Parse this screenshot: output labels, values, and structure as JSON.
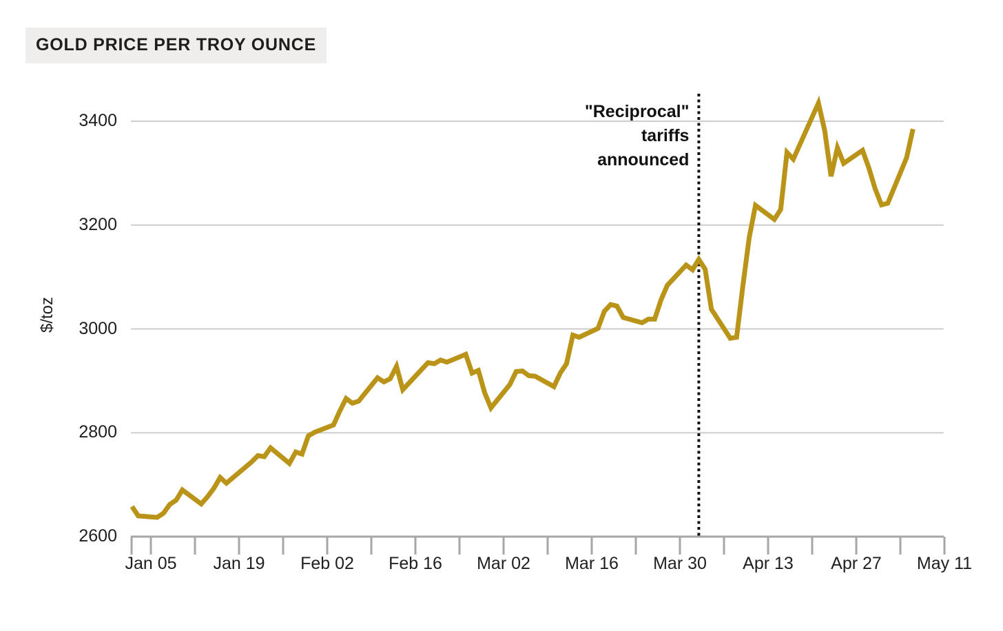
{
  "title": "GOLD PRICE PER TROY OUNCE",
  "colors": {
    "line": "#ba9418",
    "grid": "#cdcdcd",
    "axis": "#a6a6a6",
    "text": "#1f1f1f",
    "event_line": "#111111",
    "title_bg": "#efeeec"
  },
  "annotation": {
    "lines": [
      "\"Reciprocal\"",
      "tariffs",
      "announced"
    ],
    "date": "2025-04-02"
  },
  "chart_data": {
    "type": "line",
    "title": "GOLD PRICE PER TROY OUNCE",
    "ylabel": "$/toz",
    "xlabel": "",
    "ylim": [
      2600,
      3460
    ],
    "xlim": [
      "2025-01-02",
      "2025-05-11"
    ],
    "grid": "horizontal",
    "legend": "none",
    "y_ticks": [
      2600,
      2800,
      3000,
      3200,
      3400
    ],
    "y_gridlines": [
      2800,
      3000,
      3200,
      3400
    ],
    "x_ticks": [
      {
        "date": "2025-01-05",
        "label": "Jan 05"
      },
      {
        "date": "2025-01-12",
        "label": ""
      },
      {
        "date": "2025-01-19",
        "label": "Jan 19"
      },
      {
        "date": "2025-01-26",
        "label": ""
      },
      {
        "date": "2025-02-02",
        "label": "Feb 02"
      },
      {
        "date": "2025-02-09",
        "label": ""
      },
      {
        "date": "2025-02-16",
        "label": "Feb 16"
      },
      {
        "date": "2025-02-23",
        "label": ""
      },
      {
        "date": "2025-03-02",
        "label": "Mar 02"
      },
      {
        "date": "2025-03-09",
        "label": ""
      },
      {
        "date": "2025-03-16",
        "label": "Mar 16"
      },
      {
        "date": "2025-03-23",
        "label": ""
      },
      {
        "date": "2025-03-30",
        "label": "Mar 30"
      },
      {
        "date": "2025-04-06",
        "label": ""
      },
      {
        "date": "2025-04-13",
        "label": "Apr 13"
      },
      {
        "date": "2025-04-20",
        "label": ""
      },
      {
        "date": "2025-04-27",
        "label": "Apr 27"
      },
      {
        "date": "2025-05-04",
        "label": ""
      },
      {
        "date": "2025-05-11",
        "label": "May 11"
      }
    ],
    "annotation_vline": {
      "date": "2025-04-02",
      "label": "\"Reciprocal\" tariffs announced"
    },
    "series": [
      {
        "name": "Gold price ($/toz)",
        "points": [
          [
            "2025-01-02",
            2658
          ],
          [
            "2025-01-03",
            2640
          ],
          [
            "2025-01-06",
            2637
          ],
          [
            "2025-01-07",
            2645
          ],
          [
            "2025-01-08",
            2662
          ],
          [
            "2025-01-09",
            2670
          ],
          [
            "2025-01-10",
            2690
          ],
          [
            "2025-01-13",
            2663
          ],
          [
            "2025-01-14",
            2677
          ],
          [
            "2025-01-15",
            2693
          ],
          [
            "2025-01-16",
            2714
          ],
          [
            "2025-01-17",
            2703
          ],
          [
            "2025-01-21",
            2744
          ],
          [
            "2025-01-22",
            2756
          ],
          [
            "2025-01-23",
            2754
          ],
          [
            "2025-01-24",
            2771
          ],
          [
            "2025-01-27",
            2741
          ],
          [
            "2025-01-28",
            2763
          ],
          [
            "2025-01-29",
            2759
          ],
          [
            "2025-01-30",
            2794
          ],
          [
            "2025-01-31",
            2801
          ],
          [
            "2025-02-03",
            2815
          ],
          [
            "2025-02-04",
            2842
          ],
          [
            "2025-02-05",
            2866
          ],
          [
            "2025-02-06",
            2857
          ],
          [
            "2025-02-07",
            2861
          ],
          [
            "2025-02-10",
            2906
          ],
          [
            "2025-02-11",
            2898
          ],
          [
            "2025-02-12",
            2904
          ],
          [
            "2025-02-13",
            2928
          ],
          [
            "2025-02-14",
            2883
          ],
          [
            "2025-02-18",
            2935
          ],
          [
            "2025-02-19",
            2933
          ],
          [
            "2025-02-20",
            2940
          ],
          [
            "2025-02-21",
            2936
          ],
          [
            "2025-02-24",
            2951
          ],
          [
            "2025-02-25",
            2915
          ],
          [
            "2025-02-26",
            2920
          ],
          [
            "2025-02-27",
            2877
          ],
          [
            "2025-02-28",
            2848
          ],
          [
            "2025-03-03",
            2893
          ],
          [
            "2025-03-04",
            2918
          ],
          [
            "2025-03-05",
            2919
          ],
          [
            "2025-03-06",
            2910
          ],
          [
            "2025-03-07",
            2909
          ],
          [
            "2025-03-10",
            2889
          ],
          [
            "2025-03-11",
            2915
          ],
          [
            "2025-03-12",
            2933
          ],
          [
            "2025-03-13",
            2988
          ],
          [
            "2025-03-14",
            2984
          ],
          [
            "2025-03-17",
            3001
          ],
          [
            "2025-03-18",
            3034
          ],
          [
            "2025-03-19",
            3047
          ],
          [
            "2025-03-20",
            3044
          ],
          [
            "2025-03-21",
            3022
          ],
          [
            "2025-03-24",
            3012
          ],
          [
            "2025-03-25",
            3019
          ],
          [
            "2025-03-26",
            3019
          ],
          [
            "2025-03-27",
            3056
          ],
          [
            "2025-03-28",
            3084
          ],
          [
            "2025-03-31",
            3123
          ],
          [
            "2025-04-01",
            3114
          ],
          [
            "2025-04-02",
            3134
          ],
          [
            "2025-04-03",
            3115
          ],
          [
            "2025-04-04",
            3038
          ],
          [
            "2025-04-07",
            2982
          ],
          [
            "2025-04-08",
            2984
          ],
          [
            "2025-04-09",
            3083
          ],
          [
            "2025-04-10",
            3176
          ],
          [
            "2025-04-11",
            3238
          ],
          [
            "2025-04-14",
            3211
          ],
          [
            "2025-04-15",
            3230
          ],
          [
            "2025-04-16",
            3340
          ],
          [
            "2025-04-17",
            3327
          ],
          [
            "2025-04-21",
            3435
          ],
          [
            "2025-04-22",
            3381
          ],
          [
            "2025-04-23",
            3294
          ],
          [
            "2025-04-24",
            3349
          ],
          [
            "2025-04-25",
            3319
          ],
          [
            "2025-04-28",
            3344
          ],
          [
            "2025-04-29",
            3310
          ],
          [
            "2025-04-30",
            3270
          ],
          [
            "2025-05-01",
            3239
          ],
          [
            "2025-05-02",
            3242
          ],
          [
            "2025-05-05",
            3330
          ],
          [
            "2025-05-06",
            3385
          ]
        ]
      }
    ]
  }
}
